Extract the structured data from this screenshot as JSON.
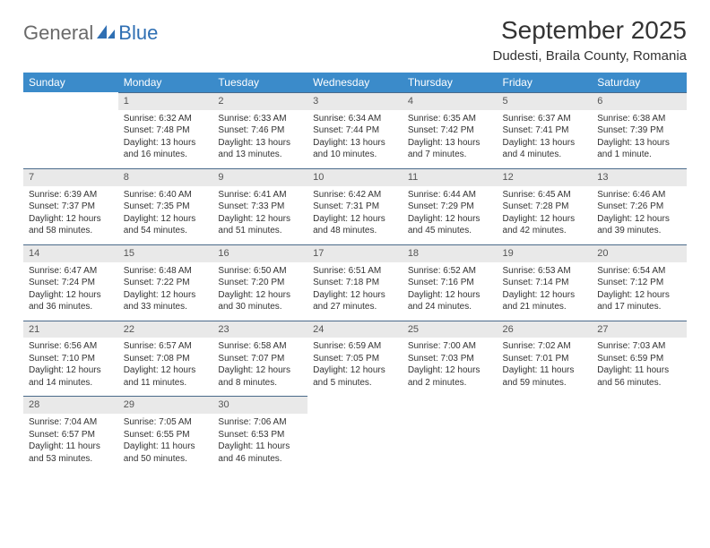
{
  "logo": {
    "part1": "General",
    "part2": "Blue"
  },
  "title": "September 2025",
  "subtitle": "Dudesti, Braila County, Romania",
  "colors": {
    "header_bg": "#3b8bca",
    "header_text": "#ffffff",
    "daynum_bg": "#e9e9e9",
    "daynum_border": "#4a6a8a",
    "body_text": "#333333",
    "logo_gray": "#6a6a6a",
    "logo_blue": "#2f6fb3",
    "page_bg": "#ffffff"
  },
  "fonts": {
    "title_size_pt": 21,
    "subtitle_size_pt": 11,
    "header_size_pt": 9,
    "cell_size_pt": 7.5
  },
  "weekdays": [
    "Sunday",
    "Monday",
    "Tuesday",
    "Wednesday",
    "Thursday",
    "Friday",
    "Saturday"
  ],
  "weeks": [
    [
      {
        "n": "",
        "sr": "",
        "ss": "",
        "dl": ""
      },
      {
        "n": "1",
        "sr": "Sunrise: 6:32 AM",
        "ss": "Sunset: 7:48 PM",
        "dl": "Daylight: 13 hours and 16 minutes."
      },
      {
        "n": "2",
        "sr": "Sunrise: 6:33 AM",
        "ss": "Sunset: 7:46 PM",
        "dl": "Daylight: 13 hours and 13 minutes."
      },
      {
        "n": "3",
        "sr": "Sunrise: 6:34 AM",
        "ss": "Sunset: 7:44 PM",
        "dl": "Daylight: 13 hours and 10 minutes."
      },
      {
        "n": "4",
        "sr": "Sunrise: 6:35 AM",
        "ss": "Sunset: 7:42 PM",
        "dl": "Daylight: 13 hours and 7 minutes."
      },
      {
        "n": "5",
        "sr": "Sunrise: 6:37 AM",
        "ss": "Sunset: 7:41 PM",
        "dl": "Daylight: 13 hours and 4 minutes."
      },
      {
        "n": "6",
        "sr": "Sunrise: 6:38 AM",
        "ss": "Sunset: 7:39 PM",
        "dl": "Daylight: 13 hours and 1 minute."
      }
    ],
    [
      {
        "n": "7",
        "sr": "Sunrise: 6:39 AM",
        "ss": "Sunset: 7:37 PM",
        "dl": "Daylight: 12 hours and 58 minutes."
      },
      {
        "n": "8",
        "sr": "Sunrise: 6:40 AM",
        "ss": "Sunset: 7:35 PM",
        "dl": "Daylight: 12 hours and 54 minutes."
      },
      {
        "n": "9",
        "sr": "Sunrise: 6:41 AM",
        "ss": "Sunset: 7:33 PM",
        "dl": "Daylight: 12 hours and 51 minutes."
      },
      {
        "n": "10",
        "sr": "Sunrise: 6:42 AM",
        "ss": "Sunset: 7:31 PM",
        "dl": "Daylight: 12 hours and 48 minutes."
      },
      {
        "n": "11",
        "sr": "Sunrise: 6:44 AM",
        "ss": "Sunset: 7:29 PM",
        "dl": "Daylight: 12 hours and 45 minutes."
      },
      {
        "n": "12",
        "sr": "Sunrise: 6:45 AM",
        "ss": "Sunset: 7:28 PM",
        "dl": "Daylight: 12 hours and 42 minutes."
      },
      {
        "n": "13",
        "sr": "Sunrise: 6:46 AM",
        "ss": "Sunset: 7:26 PM",
        "dl": "Daylight: 12 hours and 39 minutes."
      }
    ],
    [
      {
        "n": "14",
        "sr": "Sunrise: 6:47 AM",
        "ss": "Sunset: 7:24 PM",
        "dl": "Daylight: 12 hours and 36 minutes."
      },
      {
        "n": "15",
        "sr": "Sunrise: 6:48 AM",
        "ss": "Sunset: 7:22 PM",
        "dl": "Daylight: 12 hours and 33 minutes."
      },
      {
        "n": "16",
        "sr": "Sunrise: 6:50 AM",
        "ss": "Sunset: 7:20 PM",
        "dl": "Daylight: 12 hours and 30 minutes."
      },
      {
        "n": "17",
        "sr": "Sunrise: 6:51 AM",
        "ss": "Sunset: 7:18 PM",
        "dl": "Daylight: 12 hours and 27 minutes."
      },
      {
        "n": "18",
        "sr": "Sunrise: 6:52 AM",
        "ss": "Sunset: 7:16 PM",
        "dl": "Daylight: 12 hours and 24 minutes."
      },
      {
        "n": "19",
        "sr": "Sunrise: 6:53 AM",
        "ss": "Sunset: 7:14 PM",
        "dl": "Daylight: 12 hours and 21 minutes."
      },
      {
        "n": "20",
        "sr": "Sunrise: 6:54 AM",
        "ss": "Sunset: 7:12 PM",
        "dl": "Daylight: 12 hours and 17 minutes."
      }
    ],
    [
      {
        "n": "21",
        "sr": "Sunrise: 6:56 AM",
        "ss": "Sunset: 7:10 PM",
        "dl": "Daylight: 12 hours and 14 minutes."
      },
      {
        "n": "22",
        "sr": "Sunrise: 6:57 AM",
        "ss": "Sunset: 7:08 PM",
        "dl": "Daylight: 12 hours and 11 minutes."
      },
      {
        "n": "23",
        "sr": "Sunrise: 6:58 AM",
        "ss": "Sunset: 7:07 PM",
        "dl": "Daylight: 12 hours and 8 minutes."
      },
      {
        "n": "24",
        "sr": "Sunrise: 6:59 AM",
        "ss": "Sunset: 7:05 PM",
        "dl": "Daylight: 12 hours and 5 minutes."
      },
      {
        "n": "25",
        "sr": "Sunrise: 7:00 AM",
        "ss": "Sunset: 7:03 PM",
        "dl": "Daylight: 12 hours and 2 minutes."
      },
      {
        "n": "26",
        "sr": "Sunrise: 7:02 AM",
        "ss": "Sunset: 7:01 PM",
        "dl": "Daylight: 11 hours and 59 minutes."
      },
      {
        "n": "27",
        "sr": "Sunrise: 7:03 AM",
        "ss": "Sunset: 6:59 PM",
        "dl": "Daylight: 11 hours and 56 minutes."
      }
    ],
    [
      {
        "n": "28",
        "sr": "Sunrise: 7:04 AM",
        "ss": "Sunset: 6:57 PM",
        "dl": "Daylight: 11 hours and 53 minutes."
      },
      {
        "n": "29",
        "sr": "Sunrise: 7:05 AM",
        "ss": "Sunset: 6:55 PM",
        "dl": "Daylight: 11 hours and 50 minutes."
      },
      {
        "n": "30",
        "sr": "Sunrise: 7:06 AM",
        "ss": "Sunset: 6:53 PM",
        "dl": "Daylight: 11 hours and 46 minutes."
      },
      {
        "n": "",
        "sr": "",
        "ss": "",
        "dl": ""
      },
      {
        "n": "",
        "sr": "",
        "ss": "",
        "dl": ""
      },
      {
        "n": "",
        "sr": "",
        "ss": "",
        "dl": ""
      },
      {
        "n": "",
        "sr": "",
        "ss": "",
        "dl": ""
      }
    ]
  ]
}
